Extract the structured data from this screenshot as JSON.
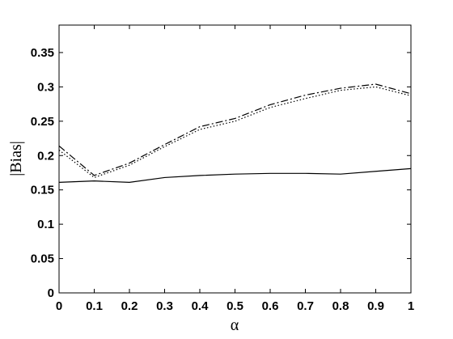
{
  "chart_data": {
    "type": "line",
    "title": "",
    "xlabel": "α",
    "ylabel": "|Bias|",
    "xlim": [
      0,
      1
    ],
    "ylim": [
      0,
      0.39
    ],
    "x_ticks": [
      0,
      0.1,
      0.2,
      0.3,
      0.4,
      0.5,
      0.6,
      0.7,
      0.8,
      0.9,
      1
    ],
    "x_tick_labels": [
      "0",
      "0.1",
      "0.2",
      "0.3",
      "0.4",
      "0.5",
      "0.6",
      "0.7",
      "0.8",
      "0.9",
      "1"
    ],
    "y_ticks": [
      0,
      0.05,
      0.1,
      0.15,
      0.2,
      0.25,
      0.3,
      0.35
    ],
    "y_tick_labels": [
      "0",
      "0.05",
      "0.1",
      "0.15",
      "0.2",
      "0.25",
      "0.3",
      "0.35"
    ],
    "grid": false,
    "legend": "none",
    "x": [
      0,
      0.1,
      0.2,
      0.3,
      0.4,
      0.5,
      0.6,
      0.7,
      0.8,
      0.9,
      1
    ],
    "series": [
      {
        "style": "solid",
        "color": "#000000",
        "values": [
          0.161,
          0.163,
          0.161,
          0.168,
          0.171,
          0.173,
          0.174,
          0.174,
          0.173,
          0.177,
          0.181
        ]
      },
      {
        "style": "dashdot",
        "color": "#000000",
        "values": [
          0.214,
          0.171,
          0.189,
          0.216,
          0.242,
          0.254,
          0.274,
          0.288,
          0.298,
          0.304,
          0.29
        ]
      },
      {
        "style": "dotted",
        "color": "#000000",
        "values": [
          0.208,
          0.168,
          0.186,
          0.213,
          0.238,
          0.25,
          0.27,
          0.283,
          0.295,
          0.3,
          0.287
        ]
      }
    ]
  }
}
